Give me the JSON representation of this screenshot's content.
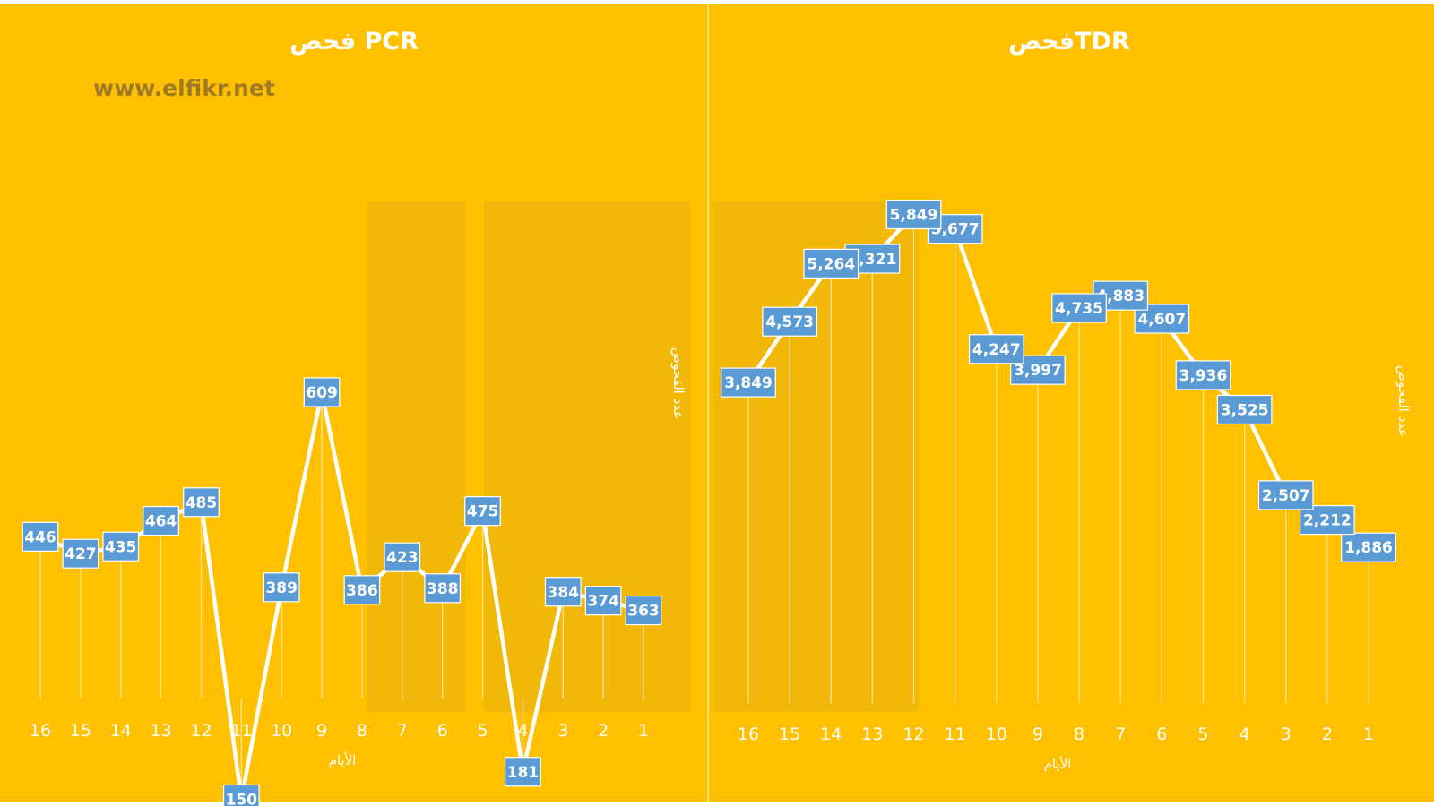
{
  "watermark": "www.elfikr.net",
  "colors": {
    "background": "#ffc000",
    "line": "#ffffff",
    "label_fill": "#5b9bd5",
    "label_text": "#ffffff",
    "watermark": "#a07a22"
  },
  "chart_data": [
    {
      "type": "line",
      "title": "فحص PCR",
      "xlabel": "الأيام",
      "ylabel": "عدد الفحوص",
      "x_order": "right-to-left",
      "categories": [
        "1",
        "2",
        "3",
        "4",
        "5",
        "6",
        "7",
        "8",
        "9",
        "10",
        "11",
        "12",
        "13",
        "14",
        "15",
        "16"
      ],
      "series": [
        {
          "values": [
            363,
            374,
            384,
            181,
            475,
            388,
            423,
            386,
            609,
            389,
            150,
            485,
            464,
            435,
            427,
            446
          ]
        }
      ],
      "ylim": [
        0,
        700
      ],
      "grid": "vertical",
      "data_labels": true
    },
    {
      "type": "line",
      "title": "فحصTDR",
      "xlabel": "الأيام",
      "ylabel": "عدد الفحوص",
      "x_order": "right-to-left",
      "categories": [
        "1",
        "2",
        "3",
        "4",
        "5",
        "6",
        "7",
        "8",
        "9",
        "10",
        "11",
        "12",
        "13",
        "14",
        "15",
        "16"
      ],
      "series": [
        {
          "values": [
            1886,
            2212,
            2507,
            3525,
            3936,
            4607,
            4883,
            4735,
            3997,
            4247,
            5677,
            5849,
            5321,
            5264,
            4573,
            3849
          ]
        }
      ],
      "ylim": [
        0,
        6900
      ],
      "grid": "vertical",
      "data_labels": true
    }
  ]
}
